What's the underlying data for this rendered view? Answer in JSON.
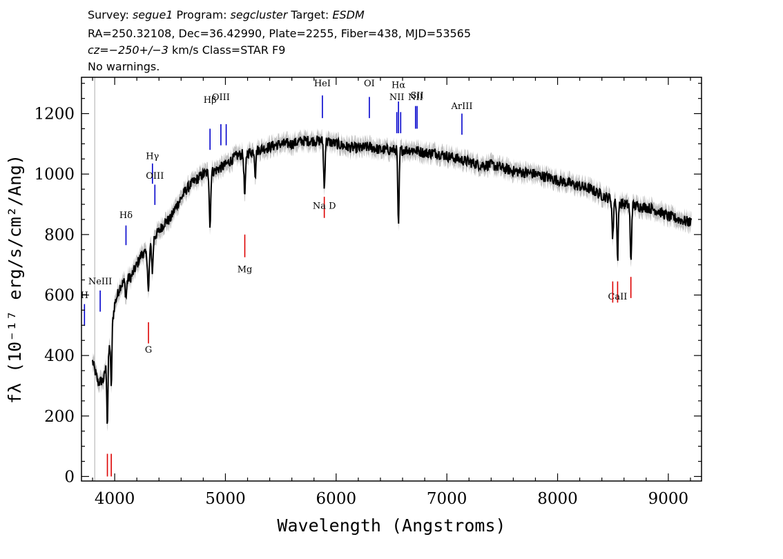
{
  "header": {
    "line1": [
      {
        "text": "Survey: ",
        "italic": false
      },
      {
        "text": "segue1",
        "italic": true
      },
      {
        "text": " Program: ",
        "italic": false
      },
      {
        "text": "segcluster",
        "italic": true
      },
      {
        "text": " Target: ",
        "italic": false
      },
      {
        "text": "ESDM",
        "italic": true
      }
    ],
    "line2": "RA=250.32108, Dec=36.42990, Plate=2255, Fiber=438, MJD=53565",
    "line3": [
      {
        "text": "cz=",
        "italic": true
      },
      {
        "text": "−250+/−3",
        "italic": true
      },
      {
        "text": " km/s Class=STAR F9",
        "italic": false
      }
    ],
    "line4": "No warnings."
  },
  "colors": {
    "flux": "#000000",
    "error_band": "#c0c0c0",
    "emission_line": "#0000cc",
    "absorption_line": "#dd0000",
    "mask_line": "#c8c8c8"
  },
  "chart_data": {
    "type": "line",
    "title": "",
    "xlabel": "Wavelength (Angstroms)",
    "ylabel": "fλ (10⁻¹⁷ erg/s/cm²/Ang)",
    "xlim": [
      3700,
      9300
    ],
    "ylim": [
      -15,
      1320
    ],
    "x_ticks": [
      4000,
      5000,
      6000,
      7000,
      8000,
      9000
    ],
    "y_ticks": [
      0,
      200,
      400,
      600,
      800,
      1000,
      1200
    ],
    "grid": false,
    "mask_line_x": 3820,
    "continuum_knots": [
      [
        3800,
        380
      ],
      [
        3850,
        310
      ],
      [
        3900,
        320
      ],
      [
        3950,
        420
      ],
      [
        4000,
        570
      ],
      [
        4050,
        630
      ],
      [
        4100,
        650
      ],
      [
        4150,
        660
      ],
      [
        4200,
        700
      ],
      [
        4250,
        740
      ],
      [
        4300,
        730
      ],
      [
        4350,
        790
      ],
      [
        4400,
        810
      ],
      [
        4450,
        840
      ],
      [
        4500,
        850
      ],
      [
        4550,
        890
      ],
      [
        4600,
        920
      ],
      [
        4650,
        950
      ],
      [
        4700,
        970
      ],
      [
        4800,
        1000
      ],
      [
        4900,
        1010
      ],
      [
        5000,
        1030
      ],
      [
        5100,
        1060
      ],
      [
        5200,
        1070
      ],
      [
        5300,
        1080
      ],
      [
        5400,
        1090
      ],
      [
        5500,
        1100
      ],
      [
        5600,
        1100
      ],
      [
        5700,
        1110
      ],
      [
        5800,
        1110
      ],
      [
        5900,
        1110
      ],
      [
        6000,
        1100
      ],
      [
        6100,
        1090
      ],
      [
        6200,
        1085
      ],
      [
        6300,
        1090
      ],
      [
        6400,
        1080
      ],
      [
        6500,
        1080
      ],
      [
        6600,
        1080
      ],
      [
        6700,
        1080
      ],
      [
        6800,
        1070
      ],
      [
        6900,
        1070
      ],
      [
        7000,
        1060
      ],
      [
        7100,
        1050
      ],
      [
        7200,
        1040
      ],
      [
        7300,
        1030
      ],
      [
        7400,
        1030
      ],
      [
        7500,
        1020
      ],
      [
        7600,
        1010
      ],
      [
        7700,
        1005
      ],
      [
        7800,
        1000
      ],
      [
        7900,
        990
      ],
      [
        8000,
        980
      ],
      [
        8100,
        970
      ],
      [
        8200,
        960
      ],
      [
        8300,
        950
      ],
      [
        8400,
        930
      ],
      [
        8500,
        915
      ],
      [
        8600,
        900
      ],
      [
        8700,
        895
      ],
      [
        8800,
        890
      ],
      [
        8900,
        880
      ],
      [
        9000,
        860
      ],
      [
        9100,
        850
      ],
      [
        9200,
        840
      ]
    ],
    "absorption_features": [
      {
        "center": 3934,
        "depth": 220,
        "width": 5
      },
      {
        "center": 3969,
        "depth": 190,
        "width": 5
      },
      {
        "center": 4102,
        "depth": 60,
        "width": 6
      },
      {
        "center": 4305,
        "depth": 130,
        "width": 6
      },
      {
        "center": 4341,
        "depth": 100,
        "width": 6
      },
      {
        "center": 4861,
        "depth": 180,
        "width": 6
      },
      {
        "center": 5175,
        "depth": 140,
        "width": 7
      },
      {
        "center": 5270,
        "depth": 80,
        "width": 5
      },
      {
        "center": 5893,
        "depth": 160,
        "width": 6
      },
      {
        "center": 6563,
        "depth": 260,
        "width": 6
      },
      {
        "center": 8498,
        "depth": 130,
        "width": 6
      },
      {
        "center": 8542,
        "depth": 190,
        "width": 6
      },
      {
        "center": 8662,
        "depth": 190,
        "width": 6
      }
    ],
    "noise_amplitude": 18,
    "error_band_width": 25,
    "emission_lines": [
      {
        "label": "H",
        "x": 3727,
        "label_y": 590,
        "y_top": 570,
        "y_bottom": 498
      },
      {
        "label": "NeIII",
        "x": 3869,
        "label_y": 635,
        "y_top": 615,
        "y_bottom": 545
      },
      {
        "label": "Hδ",
        "x": 4102,
        "label_y": 855,
        "y_top": 830,
        "y_bottom": 765
      },
      {
        "label": "Hγ",
        "x": 4341,
        "label_y": 1050,
        "y_top": 1035,
        "y_bottom": 968
      },
      {
        "label": "OIII",
        "x": 4363,
        "label_y": 985,
        "y_top": 965,
        "y_bottom": 898
      },
      {
        "label": "Hβ",
        "x": 4861,
        "label_y": 1235,
        "y_top": 1150,
        "y_bottom": 1080
      },
      {
        "label": "OIII",
        "x": 4959,
        "label_y": 1245,
        "y_top": 1165,
        "y_bottom": 1095
      },
      {
        "label": "",
        "x": 5007,
        "label_y": 0,
        "y_top": 1165,
        "y_bottom": 1095
      },
      {
        "label": "HeI",
        "x": 5876,
        "label_y": 1290,
        "y_top": 1260,
        "y_bottom": 1185
      },
      {
        "label": "OI",
        "x": 6300,
        "label_y": 1290,
        "y_top": 1255,
        "y_bottom": 1185
      },
      {
        "label": "NII",
        "x": 6548,
        "label_y": 1245,
        "y_top": 1205,
        "y_bottom": 1135
      },
      {
        "label": "Hα",
        "x": 6563,
        "label_y": 1285,
        "y_top": 1240,
        "y_bottom": 1135
      },
      {
        "label": "",
        "x": 6583,
        "label_y": 0,
        "y_top": 1205,
        "y_bottom": 1135
      },
      {
        "label": "NII",
        "x": 6717,
        "label_y": 1245,
        "y_top": 1225,
        "y_bottom": 1150
      },
      {
        "label": "SII",
        "x": 6731,
        "label_y": 1250,
        "y_top": 1225,
        "y_bottom": 1150
      },
      {
        "label": "ArIII",
        "x": 7136,
        "label_y": 1215,
        "y_top": 1200,
        "y_bottom": 1130
      }
    ],
    "absorption_lines": [
      {
        "label": "",
        "x": 3934,
        "label_y": 0,
        "y_top": 75,
        "y_bottom": 0
      },
      {
        "label": "",
        "x": 3969,
        "label_y": 0,
        "y_top": 75,
        "y_bottom": 0
      },
      {
        "label": "G",
        "x": 4305,
        "label_y": 410,
        "y_top": 510,
        "y_bottom": 440
      },
      {
        "label": "Mg",
        "x": 5175,
        "label_y": 675,
        "y_top": 800,
        "y_bottom": 725
      },
      {
        "label": "Na D",
        "x": 5893,
        "label_y": 885,
        "y_top": 925,
        "y_bottom": 855
      },
      {
        "label": "CaII",
        "x": 8542,
        "label_y": 585,
        "y_top": 645,
        "y_bottom": 575
      },
      {
        "label": "",
        "x": 8498,
        "label_y": 0,
        "y_top": 645,
        "y_bottom": 575
      },
      {
        "label": "",
        "x": 8662,
        "label_y": 0,
        "y_top": 660,
        "y_bottom": 590
      }
    ]
  }
}
